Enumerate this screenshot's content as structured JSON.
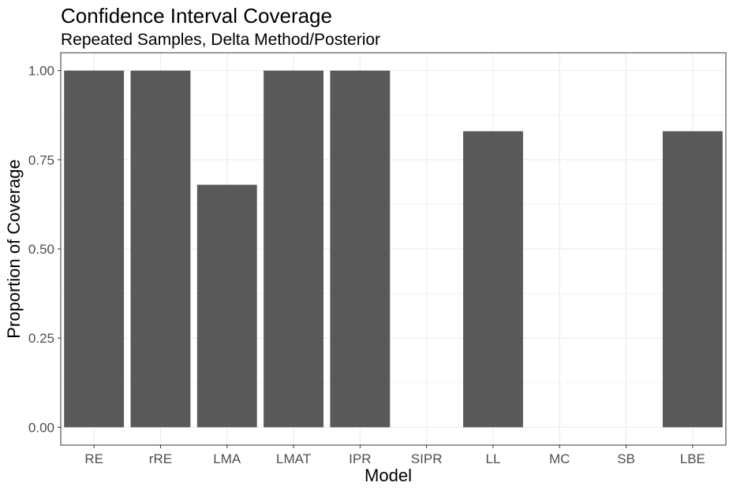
{
  "chart_data": {
    "type": "bar",
    "title": "Confidence Interval Coverage",
    "subtitle": "Repeated Samples, Delta Method/Posterior",
    "xlabel": "Model",
    "ylabel": "Proportion of Coverage",
    "categories": [
      "RE",
      "rRE",
      "LMA",
      "LMAT",
      "IPR",
      "SIPR",
      "LL",
      "MC",
      "SB",
      "LBE"
    ],
    "values": [
      1.0,
      1.0,
      0.68,
      1.0,
      1.0,
      0.0,
      0.83,
      0.0,
      0.0,
      0.83
    ],
    "ylim": [
      -0.05,
      1.05
    ],
    "yticks": [
      0.0,
      0.25,
      0.5,
      0.75,
      1.0
    ],
    "ytick_labels": [
      "0.00",
      "0.25",
      "0.50",
      "0.75",
      "1.00"
    ],
    "grid": true,
    "legend": "none",
    "bar_color": "#595959",
    "grid_color": "#ebebeb",
    "panel_border_color": "#333333"
  }
}
